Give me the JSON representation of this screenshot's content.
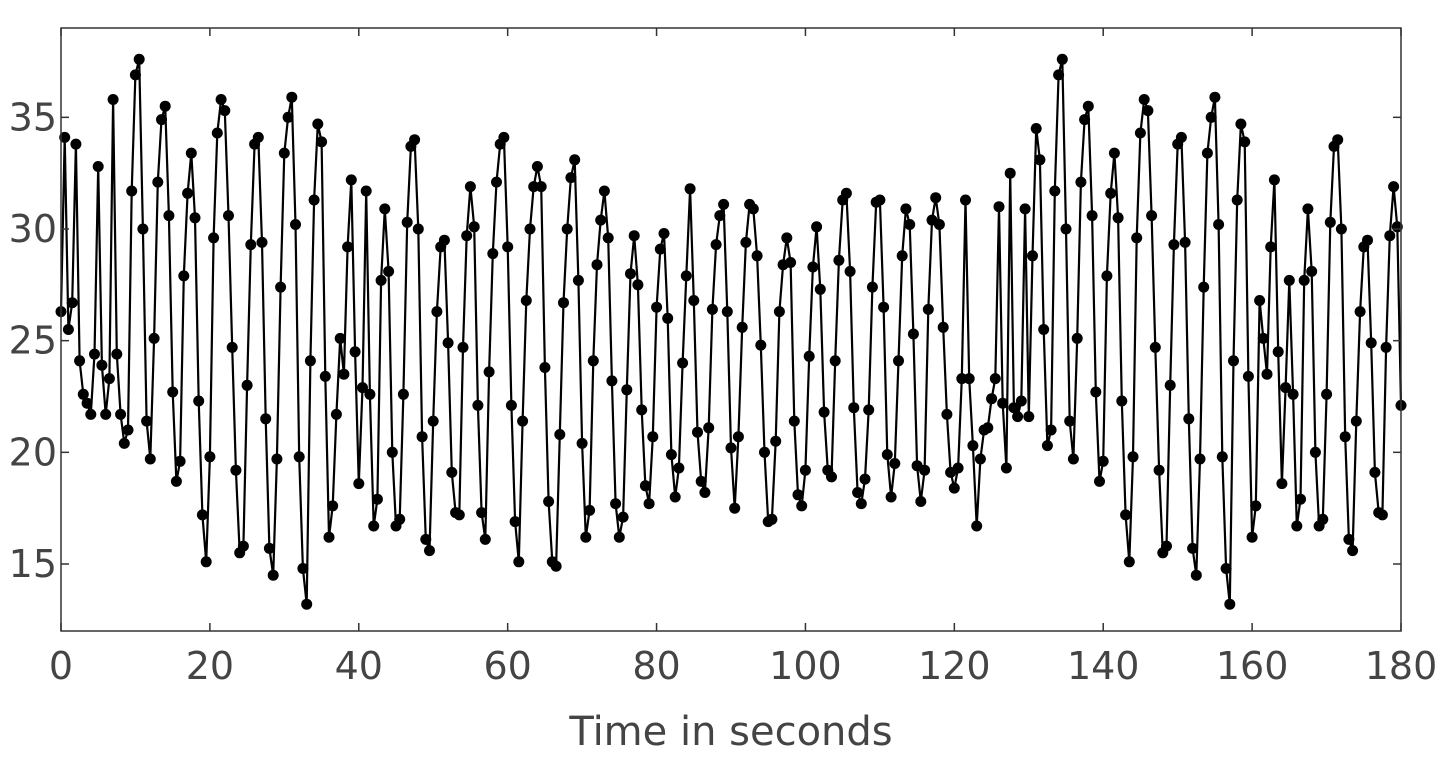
{
  "chart_data": {
    "type": "line",
    "markers": true,
    "title": "",
    "xlabel": "Time in seconds",
    "ylabel": "",
    "xlim": [
      0,
      180
    ],
    "ylim": [
      12,
      39
    ],
    "xticks": [
      0,
      20,
      40,
      60,
      80,
      100,
      120,
      140,
      160,
      180
    ],
    "yticks": [
      15,
      20,
      25,
      30,
      35
    ],
    "grid": false,
    "line_color": "#000000",
    "series": [
      {
        "x": [
          0,
          0.5,
          1,
          1.5,
          2,
          2.5,
          3,
          3.5,
          4,
          4.5,
          5,
          5.5,
          6,
          6.5,
          7,
          7.5,
          8,
          8.5,
          9,
          9.5,
          10,
          10.5,
          11,
          11.5,
          12,
          12.5,
          13,
          13.5,
          14,
          14.5,
          15,
          15.5,
          16,
          16.5,
          17,
          17.5,
          18,
          18.5,
          19,
          19.5,
          20,
          20.5,
          21,
          21.5,
          22,
          22.5,
          23,
          23.5,
          24,
          24.5,
          25,
          25.5,
          26,
          26.5,
          27,
          27.5,
          28,
          28.5,
          29,
          29.5,
          30,
          30.5,
          31,
          31.5,
          32,
          32.5,
          33,
          33.5,
          34,
          34.5,
          35,
          35.5,
          36,
          36.5,
          37,
          37.5,
          38,
          38.5,
          39,
          39.5,
          40,
          40.5,
          41,
          41.5,
          42,
          42.5,
          43,
          43.5,
          44,
          44.5,
          45,
          45.5,
          46,
          46.5,
          47,
          47.5,
          48,
          48.5,
          49,
          49.5,
          50,
          50.5,
          51,
          51.5,
          52,
          52.5,
          53,
          53.5,
          54,
          54.5,
          55,
          55.5,
          56,
          56.5,
          57,
          57.5,
          58,
          58.5,
          59,
          59.5,
          60,
          60.5,
          61,
          61.5,
          62,
          62.5,
          63,
          63.5,
          64,
          64.5,
          65,
          65.5,
          66,
          66.5,
          67,
          67.5,
          68,
          68.5,
          69,
          69.5,
          70,
          70.5,
          71,
          71.5,
          72,
          72.5,
          73,
          73.5,
          74,
          74.5,
          75,
          75.5,
          76,
          76.5,
          77,
          77.5,
          78,
          78.5,
          79,
          79.5,
          80,
          80.5,
          81,
          81.5,
          82,
          82.5,
          83,
          83.5,
          84,
          84.5,
          85,
          85.5,
          86,
          86.5,
          87,
          87.5,
          88,
          88.5,
          89,
          89.5,
          90,
          90.5,
          91,
          91.5,
          92,
          92.5,
          93,
          93.5,
          94,
          94.5,
          95,
          95.5,
          96,
          96.5,
          97,
          97.5,
          98,
          98.5,
          99,
          99.5,
          100,
          100.5,
          101,
          101.5,
          102,
          102.5,
          103,
          103.5,
          104,
          104.5,
          105,
          105.5,
          106,
          106.5,
          107,
          107.5,
          108,
          108.5,
          109,
          109.5,
          110,
          110.5,
          111,
          111.5,
          112,
          112.5,
          113,
          113.5,
          114,
          114.5,
          115,
          115.5,
          116,
          116.5,
          117,
          117.5,
          118,
          118.5,
          119,
          119.5,
          120,
          120.5,
          121,
          121.5,
          122,
          122.5,
          123,
          123.5,
          124,
          124.5,
          125,
          125.5,
          126,
          126.5,
          127,
          127.5,
          128,
          128.5,
          129,
          129.5,
          130,
          130.5,
          131,
          131.5,
          132,
          132.5,
          133,
          133.5,
          134,
          134.5,
          135,
          135.5,
          136,
          136.5,
          137,
          137.5,
          138,
          138.5,
          139,
          139.5,
          140,
          140.5,
          141,
          141.5,
          142,
          142.5,
          143,
          143.5,
          144,
          144.5,
          145,
          145.5,
          146,
          146.5,
          147,
          147.5,
          148,
          148.5,
          149,
          149.5,
          150,
          150.5,
          151,
          151.5,
          152,
          152.5,
          153,
          153.5,
          154,
          154.5,
          155,
          155.5,
          156,
          156.5,
          157,
          157.5,
          158,
          158.5,
          159,
          159.5,
          160,
          160.5,
          161,
          161.5,
          162,
          162.5,
          163,
          163.5,
          164,
          164.5,
          165,
          165.5,
          166,
          166.5,
          167,
          167.5,
          168,
          168.5,
          169,
          169.5,
          170,
          170.5,
          171,
          171.5,
          172,
          172.5,
          173,
          173.5,
          174,
          174.5,
          175,
          175.5,
          176,
          176.5,
          177,
          177.5,
          178,
          178.5,
          179,
          179.5,
          180
        ],
        "y": [
          26.3,
          34.1,
          25.5,
          26.7,
          33.8,
          24.1,
          22.6,
          22.2,
          21.7,
          24.4,
          32.8,
          23.9,
          21.7,
          23.3,
          35.8,
          24.4,
          21.7,
          20.4,
          21.0,
          31.7,
          36.9,
          37.6,
          30.0,
          21.4,
          19.7,
          25.1,
          32.1,
          34.9,
          35.5,
          30.6,
          22.7,
          18.7,
          19.6,
          27.9,
          31.6,
          33.4,
          30.5,
          22.3,
          17.2,
          15.1,
          19.8,
          29.6,
          34.3,
          35.8,
          35.3,
          30.6,
          24.7,
          19.2,
          15.5,
          15.8,
          23.0,
          29.3,
          33.8,
          34.1,
          29.4,
          21.5,
          15.7,
          14.5,
          19.7,
          27.4,
          33.4,
          35.0,
          35.9,
          30.2,
          19.8,
          14.8,
          13.2,
          24.1,
          31.3,
          34.7,
          33.9,
          23.4,
          16.2,
          17.6,
          21.7,
          25.1,
          23.5,
          29.2,
          32.2,
          24.5,
          18.6,
          22.9,
          31.7,
          22.6,
          16.7,
          17.9,
          27.7,
          30.9,
          28.1,
          20.0,
          16.7,
          17.0,
          22.6,
          30.3,
          33.7,
          34.0,
          30.0,
          20.7,
          16.1,
          15.6,
          21.4,
          26.3,
          29.2,
          29.5,
          24.9,
          19.1,
          17.3,
          17.2,
          24.7,
          29.7,
          31.9,
          30.1,
          22.1,
          17.3,
          16.1,
          23.6,
          28.9,
          32.1,
          33.8,
          34.1,
          29.2,
          22.1,
          16.9,
          15.1,
          21.4,
          26.8,
          30.0,
          31.9,
          32.8,
          31.9,
          23.8,
          17.8,
          15.1,
          14.9,
          20.8,
          26.7,
          30.0,
          32.3,
          33.1,
          27.7,
          20.4,
          16.2,
          17.4,
          24.1,
          28.4,
          30.4,
          31.7,
          29.6,
          23.2,
          17.7,
          16.2,
          17.1,
          22.8,
          28.0,
          29.7,
          27.5,
          21.9,
          18.5,
          17.7,
          20.7,
          26.5,
          29.1,
          29.8,
          26.0,
          19.9,
          18.0,
          19.3,
          24.0,
          27.9,
          31.8,
          26.8,
          20.9,
          18.7,
          18.2,
          21.1,
          26.4,
          29.3,
          30.6,
          31.1,
          26.3,
          20.2,
          17.5,
          20.7,
          25.6,
          29.4,
          31.1,
          30.9,
          28.8,
          24.8,
          20.0,
          16.9,
          17.0,
          20.5,
          26.3,
          28.4,
          29.6,
          28.5,
          21.4,
          18.1,
          17.6,
          19.2,
          24.3,
          28.3,
          30.1,
          27.3,
          21.8,
          19.2,
          18.9,
          24.1,
          28.6,
          31.3,
          31.6,
          28.1,
          22.0,
          18.2,
          17.7,
          18.8,
          21.9,
          27.4,
          31.2,
          31.3,
          26.5,
          19.9,
          18.0,
          19.5,
          24.1,
          28.8,
          30.9,
          30.2,
          25.3,
          19.4,
          17.8,
          19.2,
          26.4,
          30.4,
          31.4,
          30.2,
          25.6,
          21.7,
          19.1,
          18.4,
          19.3,
          23.3,
          31.3,
          23.3,
          20.3,
          16.7,
          19.7,
          21.0,
          21.1,
          22.4,
          23.3,
          31.0,
          22.2,
          19.3,
          32.5,
          22.0,
          21.6,
          22.3,
          30.9,
          21.6,
          28.8,
          34.5,
          33.1,
          25.5,
          20.3,
          21.0,
          31.7,
          36.9,
          37.6,
          30.0,
          21.4,
          19.7,
          25.1,
          32.1,
          34.9,
          35.5,
          30.6,
          22.7,
          18.7,
          19.6,
          27.9,
          31.6,
          33.4,
          30.5,
          22.3,
          17.2,
          15.1,
          19.8,
          29.6,
          34.3,
          35.8,
          35.3,
          30.6,
          24.7,
          19.2,
          15.5,
          15.8,
          23.0,
          29.3,
          33.8,
          34.1,
          29.4,
          21.5,
          15.7,
          14.5,
          19.7,
          27.4,
          33.4,
          35.0,
          35.9,
          30.2,
          19.8,
          14.8,
          13.2,
          24.1,
          31.3,
          34.7,
          33.9,
          23.4,
          16.2,
          17.6,
          26.8,
          25.1,
          23.5,
          29.2,
          32.2,
          24.5,
          18.6,
          22.9,
          27.7,
          22.6,
          16.7,
          17.9,
          27.7,
          30.9,
          28.1,
          20.0,
          16.7,
          17.0,
          22.6,
          30.3,
          33.7,
          34.0,
          30.0,
          20.7,
          16.1,
          15.6,
          21.4,
          26.3,
          29.2,
          29.5,
          24.9,
          19.1,
          17.3,
          17.2,
          24.7,
          29.7,
          31.9,
          30.1,
          22.1
        ]
      }
    ]
  }
}
